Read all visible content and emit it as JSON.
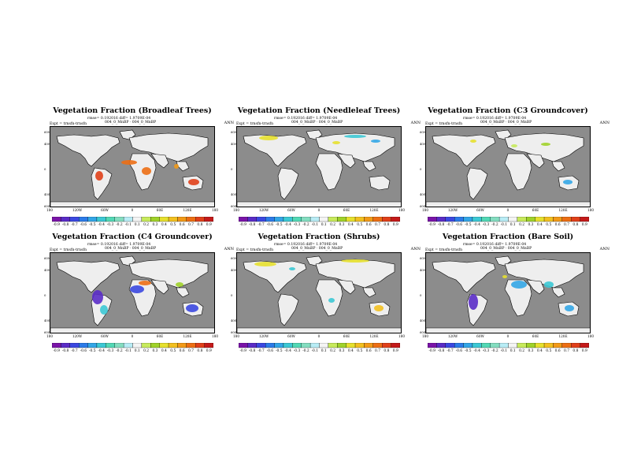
{
  "common": {
    "expt": "Expt = trnsfn-trnsfn",
    "case": "004_0_MnBP · 004_0_MnBP",
    "season": "ANN",
    "lat_labels": [
      "60N",
      "40N",
      "0",
      "40S",
      "60S"
    ],
    "lon_labels": [
      "180",
      "120W",
      "60W",
      "0",
      "60E",
      "120E",
      "180"
    ],
    "colorbar_labels": [
      "-0.9",
      "-0.8",
      "-0.7",
      "-0.6",
      "-0.5",
      "-0.4",
      "-0.3",
      "-0.2",
      "-0.1",
      "0.1",
      "0.2",
      "0.3",
      "0.4",
      "0.5",
      "0.6",
      "0.7",
      "0.8",
      "0.9"
    ],
    "colorbar_colors": [
      "#7a14a8",
      "#5a2cc6",
      "#3b48e0",
      "#2c7be8",
      "#33a6e6",
      "#3cc8d4",
      "#52d8b5",
      "#84ddc0",
      "#b8ecf5",
      "#f4f4f4",
      "#c7ea5c",
      "#a0d22a",
      "#e6e02e",
      "#f2c020",
      "#f29a18",
      "#ec6e14",
      "#e0401a",
      "#c41a1a"
    ]
  },
  "panels": [
    {
      "title": "Vegetation Fraction (Broadleaf Trees)",
      "stats": "rmse= 0.192016 diff= 1.9709E-04"
    },
    {
      "title": "Vegetation Fraction (Needleleaf Trees)",
      "stats": "rmse= 0.192016 diff= 1.9709E-04"
    },
    {
      "title": "Vegetation Fraction (C3 Groundcover)",
      "stats": "rmse= 0.192016 diff= 1.9709E-04"
    },
    {
      "title": "Vegetation Fraction (C4 Groundcover)",
      "stats": "rmse= 0.192016 diff= 1.9709E-04"
    },
    {
      "title": "Vegetation Fraction (Shrubs)",
      "stats": "rmse= 0.192016 diff= 1.9709E-04"
    },
    {
      "title": "Vegetation Fraction (Bare Soil)",
      "stats": "rmse= 0.192016 diff= 1.9709E-04"
    }
  ]
}
